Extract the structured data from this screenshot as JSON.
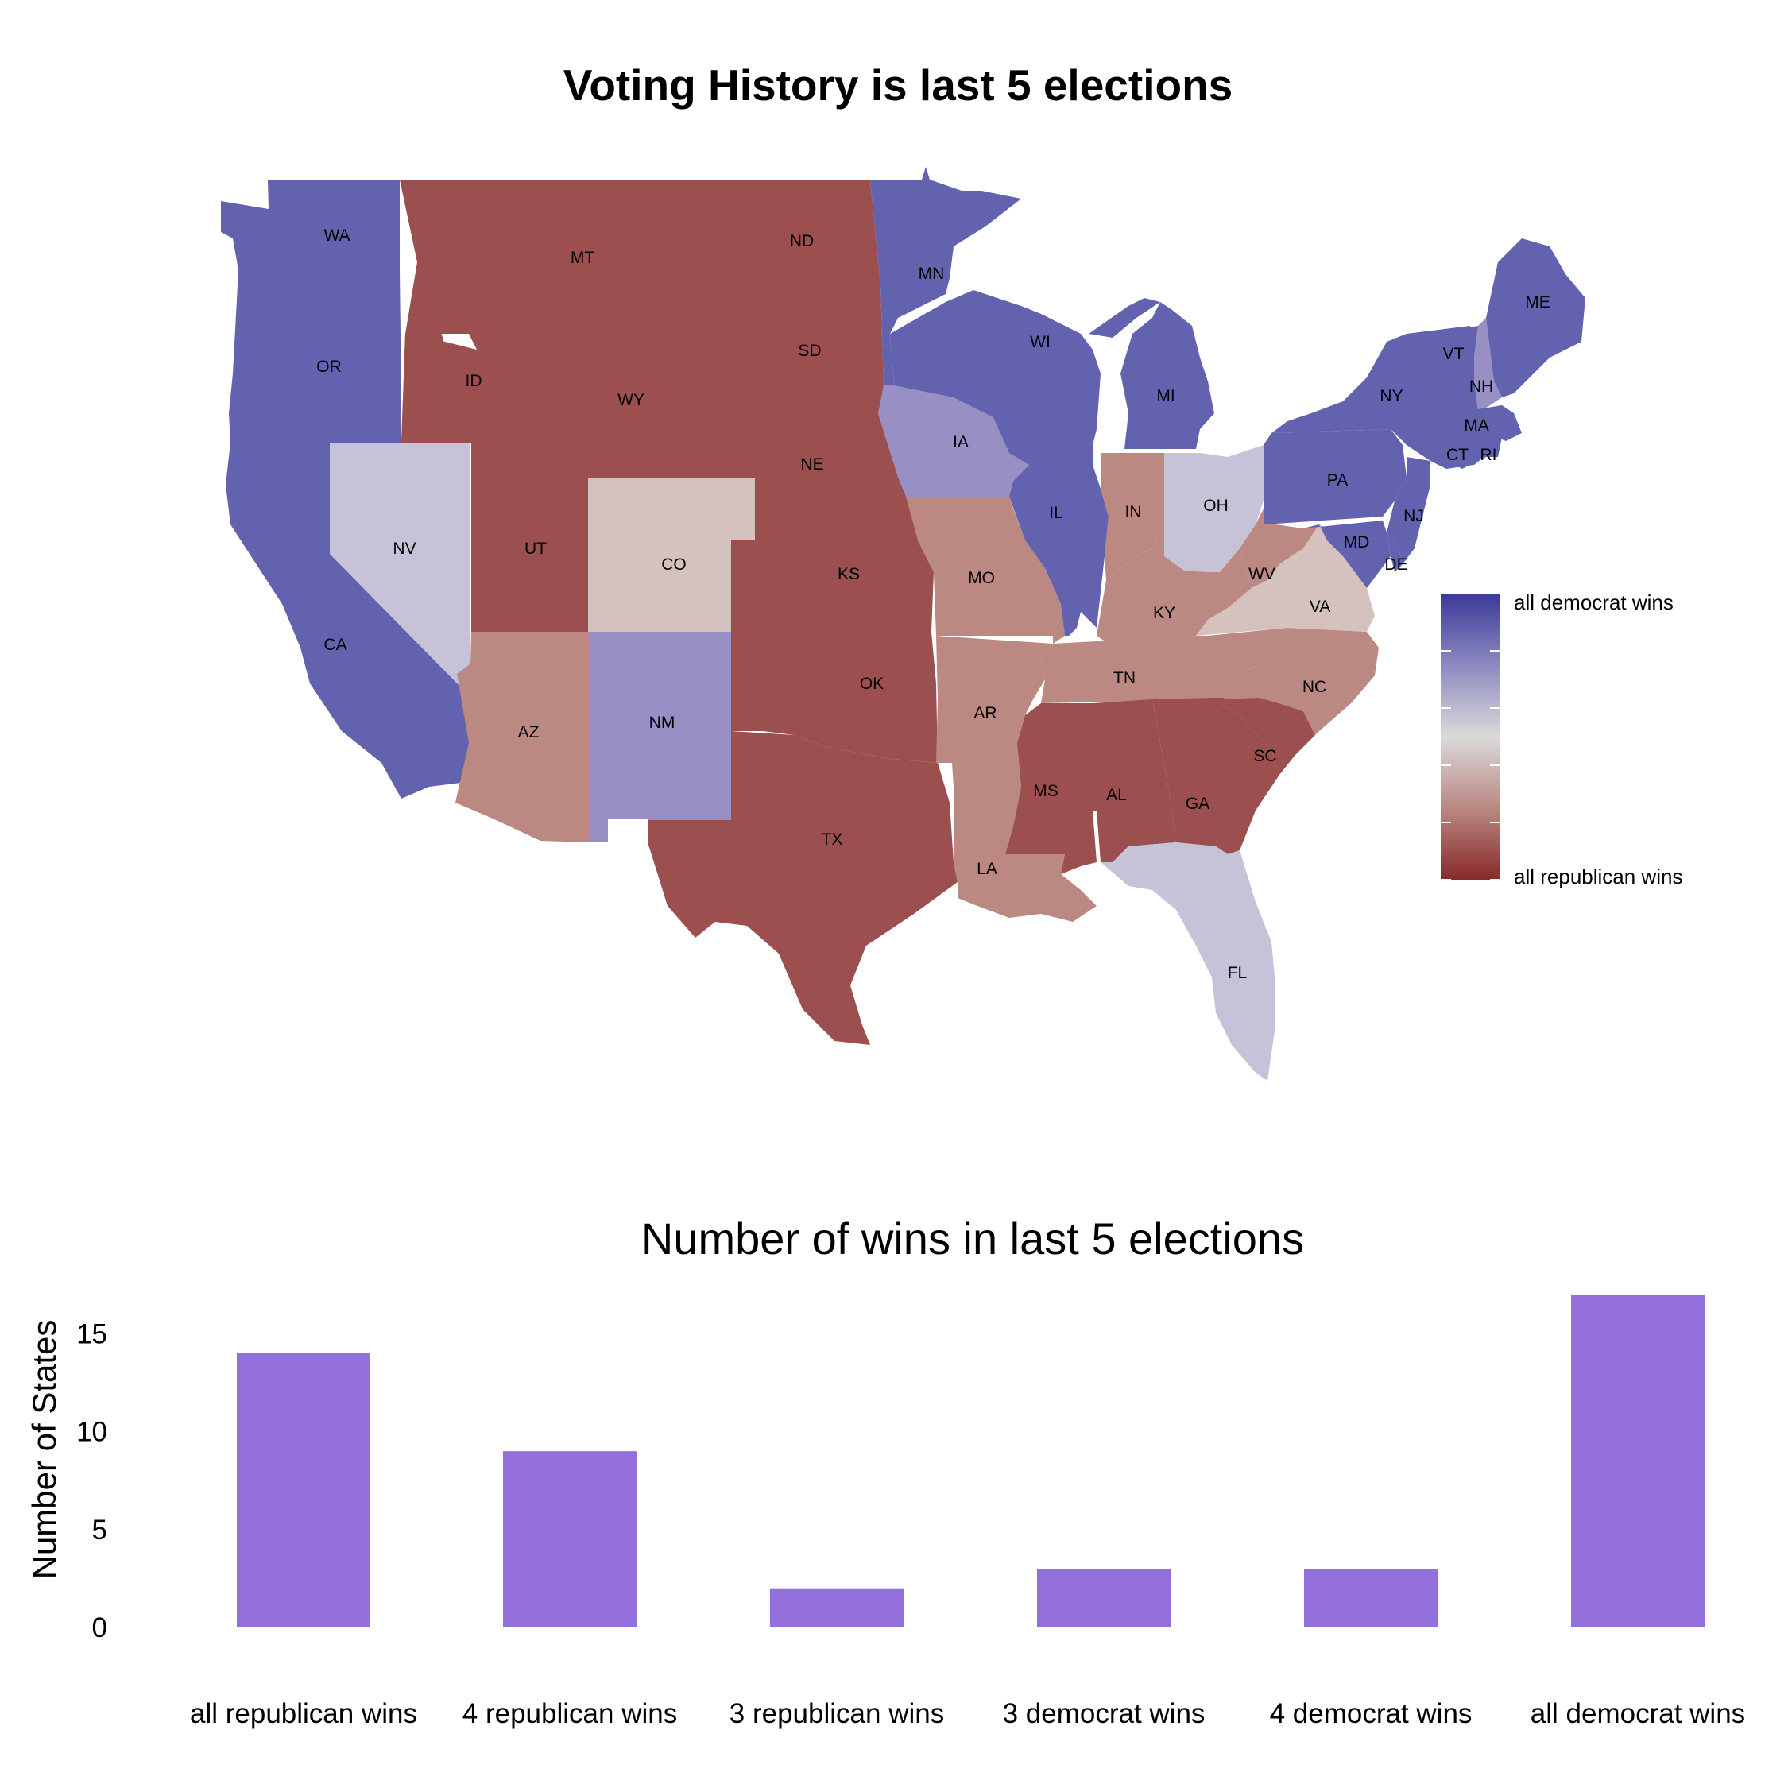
{
  "map": {
    "title": "Voting History is last 5 elections",
    "legend": {
      "top_label": "all democrat wins",
      "bottom_label": "all republican wins"
    },
    "colors": {
      "all_republican": "#9b4f4f",
      "four_republican": "#bb8882",
      "three_republican": "#d5c2bf",
      "three_democrat": "#c6c3d8",
      "four_democrat": "#9890c4",
      "all_democrat": "#6262ae"
    },
    "states": [
      {
        "abbr": "WA",
        "wins": "all democrat wins"
      },
      {
        "abbr": "OR",
        "wins": "all democrat wins"
      },
      {
        "abbr": "CA",
        "wins": "all democrat wins"
      },
      {
        "abbr": "NV",
        "wins": "3 democrat wins"
      },
      {
        "abbr": "ID",
        "wins": "all republican wins"
      },
      {
        "abbr": "MT",
        "wins": "all republican wins"
      },
      {
        "abbr": "WY",
        "wins": "all republican wins"
      },
      {
        "abbr": "UT",
        "wins": "all republican wins"
      },
      {
        "abbr": "AZ",
        "wins": "4 republican wins"
      },
      {
        "abbr": "CO",
        "wins": "3 republican wins"
      },
      {
        "abbr": "NM",
        "wins": "4 democrat wins"
      },
      {
        "abbr": "ND",
        "wins": "all republican wins"
      },
      {
        "abbr": "SD",
        "wins": "all republican wins"
      },
      {
        "abbr": "NE",
        "wins": "all republican wins"
      },
      {
        "abbr": "KS",
        "wins": "all republican wins"
      },
      {
        "abbr": "OK",
        "wins": "all republican wins"
      },
      {
        "abbr": "TX",
        "wins": "all republican wins"
      },
      {
        "abbr": "MN",
        "wins": "all democrat wins"
      },
      {
        "abbr": "IA",
        "wins": "4 democrat wins"
      },
      {
        "abbr": "MO",
        "wins": "4 republican wins"
      },
      {
        "abbr": "AR",
        "wins": "4 republican wins"
      },
      {
        "abbr": "LA",
        "wins": "4 republican wins"
      },
      {
        "abbr": "WI",
        "wins": "all democrat wins"
      },
      {
        "abbr": "IL",
        "wins": "all democrat wins"
      },
      {
        "abbr": "MI",
        "wins": "all democrat wins"
      },
      {
        "abbr": "IN",
        "wins": "4 republican wins"
      },
      {
        "abbr": "OH",
        "wins": "3 democrat wins"
      },
      {
        "abbr": "KY",
        "wins": "4 republican wins"
      },
      {
        "abbr": "TN",
        "wins": "4 republican wins"
      },
      {
        "abbr": "MS",
        "wins": "all republican wins"
      },
      {
        "abbr": "AL",
        "wins": "all republican wins"
      },
      {
        "abbr": "GA",
        "wins": "all republican wins"
      },
      {
        "abbr": "SC",
        "wins": "all republican wins"
      },
      {
        "abbr": "FL",
        "wins": "3 democrat wins"
      },
      {
        "abbr": "NC",
        "wins": "4 republican wins"
      },
      {
        "abbr": "VA",
        "wins": "3 republican wins"
      },
      {
        "abbr": "WV",
        "wins": "4 republican wins"
      },
      {
        "abbr": "PA",
        "wins": "all democrat wins"
      },
      {
        "abbr": "NY",
        "wins": "all democrat wins"
      },
      {
        "abbr": "NJ",
        "wins": "all democrat wins"
      },
      {
        "abbr": "MD",
        "wins": "all democrat wins"
      },
      {
        "abbr": "DE",
        "wins": "all democrat wins"
      },
      {
        "abbr": "VT",
        "wins": "all democrat wins"
      },
      {
        "abbr": "NH",
        "wins": "4 democrat wins"
      },
      {
        "abbr": "ME",
        "wins": "all democrat wins"
      },
      {
        "abbr": "MA",
        "wins": "all democrat wins"
      },
      {
        "abbr": "CT",
        "wins": "all democrat wins"
      },
      {
        "abbr": "RI",
        "wins": "all democrat wins"
      }
    ]
  },
  "chart_data": {
    "type": "bar",
    "title": "Number of wins in last 5 elections",
    "xlabel": "",
    "ylabel": "Number of States",
    "categories": [
      "all republican wins",
      "4 republican wins",
      "3 republican wins",
      "3 democrat wins",
      "4 democrat wins",
      "all democrat wins"
    ],
    "values": [
      14,
      9,
      2,
      3,
      3,
      17
    ],
    "yticks": [
      0,
      5,
      10,
      15
    ],
    "ylim": [
      0,
      17
    ],
    "bar_color": "#9370db",
    "grid": false
  }
}
